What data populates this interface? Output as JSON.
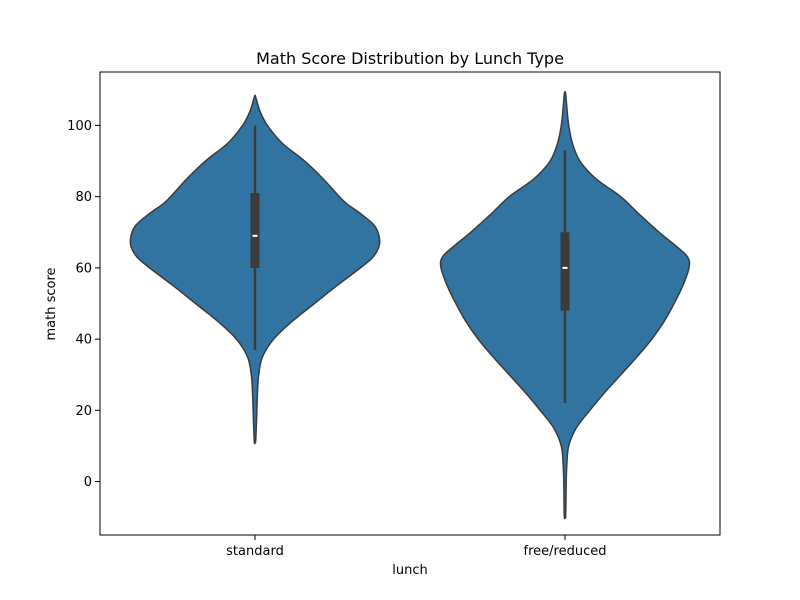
{
  "chart_data": {
    "type": "violin",
    "title": "Math Score Distribution by Lunch Type",
    "xlabel": "lunch",
    "ylabel": "math score",
    "categories": [
      "standard",
      "free/reduced"
    ],
    "ylim": [
      -15,
      115
    ],
    "yticks": [
      0,
      20,
      40,
      60,
      80,
      100
    ],
    "grid": false,
    "legend": "none",
    "violin_color": "#3274a1",
    "edge_color": "#3b3b3b",
    "box_color": "#3b3b3b",
    "median_color": "#ffffff",
    "series": [
      {
        "category": "standard",
        "range": [
          11,
          108
        ],
        "whisker": [
          37,
          100
        ],
        "q1": 60,
        "median": 69,
        "q3": 81,
        "density": [
          [
            11,
            0.005
          ],
          [
            15,
            0.01
          ],
          [
            20,
            0.015
          ],
          [
            25,
            0.02
          ],
          [
            30,
            0.03
          ],
          [
            35,
            0.06
          ],
          [
            40,
            0.15
          ],
          [
            45,
            0.3
          ],
          [
            50,
            0.48
          ],
          [
            55,
            0.66
          ],
          [
            60,
            0.85
          ],
          [
            63,
            0.95
          ],
          [
            66,
            1.0
          ],
          [
            69,
            1.0
          ],
          [
            72,
            0.96
          ],
          [
            75,
            0.86
          ],
          [
            78,
            0.74
          ],
          [
            80,
            0.68
          ],
          [
            85,
            0.55
          ],
          [
            90,
            0.4
          ],
          [
            95,
            0.22
          ],
          [
            100,
            0.1
          ],
          [
            104,
            0.04
          ],
          [
            108,
            0.005
          ]
        ]
      },
      {
        "category": "free/reduced",
        "range": [
          -10,
          109
        ],
        "whisker": [
          22,
          93
        ],
        "q1": 48,
        "median": 60,
        "q3": 70,
        "density": [
          [
            -10,
            0.005
          ],
          [
            -5,
            0.008
          ],
          [
            0,
            0.01
          ],
          [
            5,
            0.015
          ],
          [
            10,
            0.03
          ],
          [
            15,
            0.09
          ],
          [
            20,
            0.2
          ],
          [
            25,
            0.32
          ],
          [
            30,
            0.45
          ],
          [
            35,
            0.58
          ],
          [
            40,
            0.7
          ],
          [
            45,
            0.8
          ],
          [
            50,
            0.88
          ],
          [
            55,
            0.95
          ],
          [
            60,
            1.0
          ],
          [
            63,
            0.99
          ],
          [
            66,
            0.9
          ],
          [
            70,
            0.76
          ],
          [
            75,
            0.6
          ],
          [
            80,
            0.45
          ],
          [
            85,
            0.25
          ],
          [
            90,
            0.12
          ],
          [
            95,
            0.06
          ],
          [
            100,
            0.03
          ],
          [
            105,
            0.015
          ],
          [
            109,
            0.005
          ]
        ]
      }
    ]
  }
}
